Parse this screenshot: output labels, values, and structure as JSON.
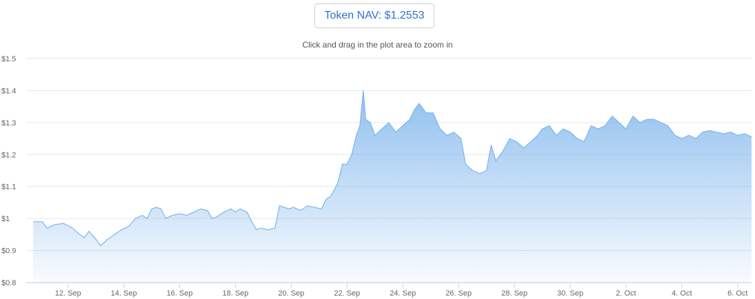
{
  "header": {
    "nav_label": "Token NAV: $1.2553",
    "hint": "Click and drag in the plot area to zoom in"
  },
  "colors": {
    "line": "#7cb5ec",
    "title": "#2f6fd1",
    "grid": "#e6e6e6"
  },
  "chart_data": {
    "type": "area",
    "title": "Token NAV: $1.2553",
    "subtitle": "Click and drag in the plot area to zoom in",
    "ylim": [
      0.8,
      1.5
    ],
    "xlim": [
      "2023-09-10T12:00",
      "2023-10-06T12:00"
    ],
    "yticks": [
      {
        "value": 1.5,
        "label": "$1.5"
      },
      {
        "value": 1.4,
        "label": "$1.4"
      },
      {
        "value": 1.3,
        "label": "$1.3"
      },
      {
        "value": 1.2,
        "label": "$1.2"
      },
      {
        "value": 1.1,
        "label": "$1.1"
      },
      {
        "value": 1.0,
        "label": "$1"
      },
      {
        "value": 0.9,
        "label": "$0.9"
      },
      {
        "value": 0.8,
        "label": "$0.8"
      }
    ],
    "xticks": [
      {
        "date": "2023-09-12",
        "label": "12. Sep"
      },
      {
        "date": "2023-09-14",
        "label": "14. Sep"
      },
      {
        "date": "2023-09-16",
        "label": "16. Sep"
      },
      {
        "date": "2023-09-18",
        "label": "18. Sep"
      },
      {
        "date": "2023-09-20",
        "label": "20. Sep"
      },
      {
        "date": "2023-09-22",
        "label": "22. Sep"
      },
      {
        "date": "2023-09-24",
        "label": "24. Sep"
      },
      {
        "date": "2023-09-26",
        "label": "26. Sep"
      },
      {
        "date": "2023-09-28",
        "label": "28. Sep"
      },
      {
        "date": "2023-09-30",
        "label": "30. Sep"
      },
      {
        "date": "2023-10-02",
        "label": "2. Oct"
      },
      {
        "date": "2023-10-04",
        "label": "4. Oct"
      },
      {
        "date": "2023-10-06",
        "label": "6. Oct"
      }
    ],
    "grid": true,
    "legend": "none",
    "series": [
      {
        "points": [
          [
            "2023-09-10T18:00",
            0.99
          ],
          [
            "2023-09-11T02:00",
            0.99
          ],
          [
            "2023-09-11T06:00",
            0.97
          ],
          [
            "2023-09-11T12:00",
            0.98
          ],
          [
            "2023-09-11T20:00",
            0.985
          ],
          [
            "2023-09-12T04:00",
            0.97
          ],
          [
            "2023-09-12T10:00",
            0.95
          ],
          [
            "2023-09-12T14:00",
            0.94
          ],
          [
            "2023-09-12T18:00",
            0.96
          ],
          [
            "2023-09-13T00:00",
            0.935
          ],
          [
            "2023-09-13T04:00",
            0.915
          ],
          [
            "2023-09-13T10:00",
            0.935
          ],
          [
            "2023-09-13T16:00",
            0.95
          ],
          [
            "2023-09-13T22:00",
            0.965
          ],
          [
            "2023-09-14T04:00",
            0.975
          ],
          [
            "2023-09-14T10:00",
            1.0
          ],
          [
            "2023-09-14T16:00",
            1.01
          ],
          [
            "2023-09-14T20:00",
            1.0
          ],
          [
            "2023-09-15T00:00",
            1.03
          ],
          [
            "2023-09-15T04:00",
            1.035
          ],
          [
            "2023-09-15T08:00",
            1.03
          ],
          [
            "2023-09-15T12:00",
            1.0
          ],
          [
            "2023-09-15T18:00",
            1.01
          ],
          [
            "2023-09-16T00:00",
            1.015
          ],
          [
            "2023-09-16T06:00",
            1.01
          ],
          [
            "2023-09-16T12:00",
            1.02
          ],
          [
            "2023-09-16T18:00",
            1.03
          ],
          [
            "2023-09-17T00:00",
            1.025
          ],
          [
            "2023-09-17T04:00",
            1.0
          ],
          [
            "2023-09-17T08:00",
            1.005
          ],
          [
            "2023-09-17T14:00",
            1.02
          ],
          [
            "2023-09-17T20:00",
            1.03
          ],
          [
            "2023-09-18T00:00",
            1.02
          ],
          [
            "2023-09-18T04:00",
            1.03
          ],
          [
            "2023-09-18T10:00",
            1.02
          ],
          [
            "2023-09-18T14:00",
            0.99
          ],
          [
            "2023-09-18T18:00",
            0.965
          ],
          [
            "2023-09-18T22:00",
            0.97
          ],
          [
            "2023-09-19T04:00",
            0.965
          ],
          [
            "2023-09-19T10:00",
            0.97
          ],
          [
            "2023-09-19T14:00",
            1.04
          ],
          [
            "2023-09-19T22:00",
            1.03
          ],
          [
            "2023-09-20T02:00",
            1.035
          ],
          [
            "2023-09-20T08:00",
            1.025
          ],
          [
            "2023-09-20T14:00",
            1.04
          ],
          [
            "2023-09-20T20:00",
            1.035
          ],
          [
            "2023-09-21T02:00",
            1.03
          ],
          [
            "2023-09-21T06:00",
            1.06
          ],
          [
            "2023-09-21T10:00",
            1.07
          ],
          [
            "2023-09-21T16:00",
            1.11
          ],
          [
            "2023-09-21T20:00",
            1.17
          ],
          [
            "2023-09-22T00:00",
            1.17
          ],
          [
            "2023-09-22T04:00",
            1.2
          ],
          [
            "2023-09-22T08:00",
            1.26
          ],
          [
            "2023-09-22T11:00",
            1.29
          ],
          [
            "2023-09-22T14:00",
            1.4
          ],
          [
            "2023-09-22T16:00",
            1.31
          ],
          [
            "2023-09-22T20:00",
            1.3
          ],
          [
            "2023-09-23T00:00",
            1.26
          ],
          [
            "2023-09-23T06:00",
            1.28
          ],
          [
            "2023-09-23T12:00",
            1.3
          ],
          [
            "2023-09-23T18:00",
            1.27
          ],
          [
            "2023-09-24T00:00",
            1.29
          ],
          [
            "2023-09-24T06:00",
            1.31
          ],
          [
            "2023-09-24T10:00",
            1.34
          ],
          [
            "2023-09-24T14:00",
            1.36
          ],
          [
            "2023-09-24T20:00",
            1.33
          ],
          [
            "2023-09-25T02:00",
            1.33
          ],
          [
            "2023-09-25T08:00",
            1.28
          ],
          [
            "2023-09-25T14:00",
            1.26
          ],
          [
            "2023-09-25T20:00",
            1.27
          ],
          [
            "2023-09-26T02:00",
            1.25
          ],
          [
            "2023-09-26T06:00",
            1.17
          ],
          [
            "2023-09-26T12:00",
            1.15
          ],
          [
            "2023-09-26T18:00",
            1.14
          ],
          [
            "2023-09-27T00:00",
            1.15
          ],
          [
            "2023-09-27T04:00",
            1.23
          ],
          [
            "2023-09-27T08:00",
            1.18
          ],
          [
            "2023-09-27T14:00",
            1.21
          ],
          [
            "2023-09-27T20:00",
            1.25
          ],
          [
            "2023-09-28T02:00",
            1.24
          ],
          [
            "2023-09-28T08:00",
            1.22
          ],
          [
            "2023-09-28T14:00",
            1.24
          ],
          [
            "2023-09-28T20:00",
            1.26
          ],
          [
            "2023-09-29T00:00",
            1.28
          ],
          [
            "2023-09-29T06:00",
            1.29
          ],
          [
            "2023-09-29T12:00",
            1.26
          ],
          [
            "2023-09-29T18:00",
            1.28
          ],
          [
            "2023-09-30T00:00",
            1.27
          ],
          [
            "2023-09-30T06:00",
            1.25
          ],
          [
            "2023-09-30T12:00",
            1.24
          ],
          [
            "2023-09-30T18:00",
            1.29
          ],
          [
            "2023-10-01T00:00",
            1.28
          ],
          [
            "2023-10-01T06:00",
            1.29
          ],
          [
            "2023-10-01T12:00",
            1.32
          ],
          [
            "2023-10-01T18:00",
            1.3
          ],
          [
            "2023-10-02T00:00",
            1.28
          ],
          [
            "2023-10-02T06:00",
            1.32
          ],
          [
            "2023-10-02T12:00",
            1.3
          ],
          [
            "2023-10-02T18:00",
            1.31
          ],
          [
            "2023-10-03T00:00",
            1.31
          ],
          [
            "2023-10-03T06:00",
            1.3
          ],
          [
            "2023-10-03T12:00",
            1.29
          ],
          [
            "2023-10-03T18:00",
            1.26
          ],
          [
            "2023-10-04T00:00",
            1.25
          ],
          [
            "2023-10-04T06:00",
            1.26
          ],
          [
            "2023-10-04T12:00",
            1.25
          ],
          [
            "2023-10-04T18:00",
            1.27
          ],
          [
            "2023-10-05T00:00",
            1.275
          ],
          [
            "2023-10-05T06:00",
            1.27
          ],
          [
            "2023-10-05T12:00",
            1.265
          ],
          [
            "2023-10-05T18:00",
            1.27
          ],
          [
            "2023-10-06T00:00",
            1.26
          ],
          [
            "2023-10-06T06:00",
            1.265
          ],
          [
            "2023-10-06T12:00",
            1.2553
          ]
        ]
      }
    ]
  }
}
